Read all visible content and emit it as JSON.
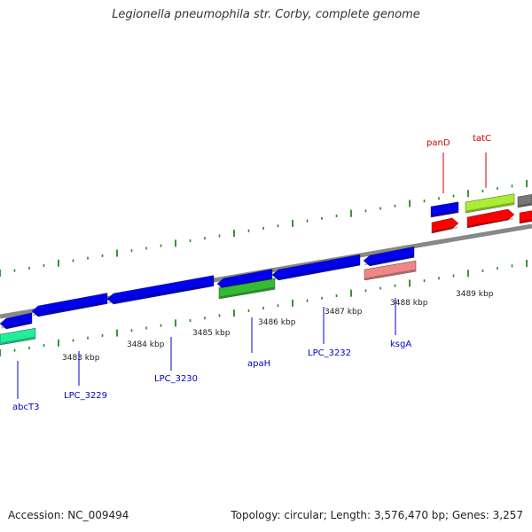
{
  "title": "Legionella pneumophila str. Corby, complete genome",
  "footer": {
    "accession": "Accession: NC_009494",
    "stats": "Topology: circular; Length: 3,576,470 bp; Genes: 3,257"
  },
  "colors": {
    "blue_gene": "#0000ee",
    "green_gene": "#33bb33",
    "teal_gene": "#22ee99",
    "lime_gene": "#aaee33",
    "red_gene": "#ff0000",
    "pink_gene": "#ee8888",
    "gray_gene": "#777777",
    "tick": "#228822",
    "backbone": "#888888",
    "label_blue": "#0000cc",
    "label_red": "#cc0000"
  },
  "scale_labels": [
    "3483 kbp",
    "3484 kbp",
    "3485 kbp",
    "3486 kbp",
    "3487 kbp",
    "3488 kbp",
    "3489 kbp"
  ],
  "gene_labels": [
    {
      "name": "abcT3",
      "color": "blue"
    },
    {
      "name": "LPC_3229",
      "color": "blue"
    },
    {
      "name": "LPC_3230",
      "color": "blue"
    },
    {
      "name": "apaH",
      "color": "blue"
    },
    {
      "name": "LPC_3232",
      "color": "blue"
    },
    {
      "name": "ksgA",
      "color": "blue"
    },
    {
      "name": "panD",
      "color": "red"
    },
    {
      "name": "tatC",
      "color": "red"
    }
  ]
}
